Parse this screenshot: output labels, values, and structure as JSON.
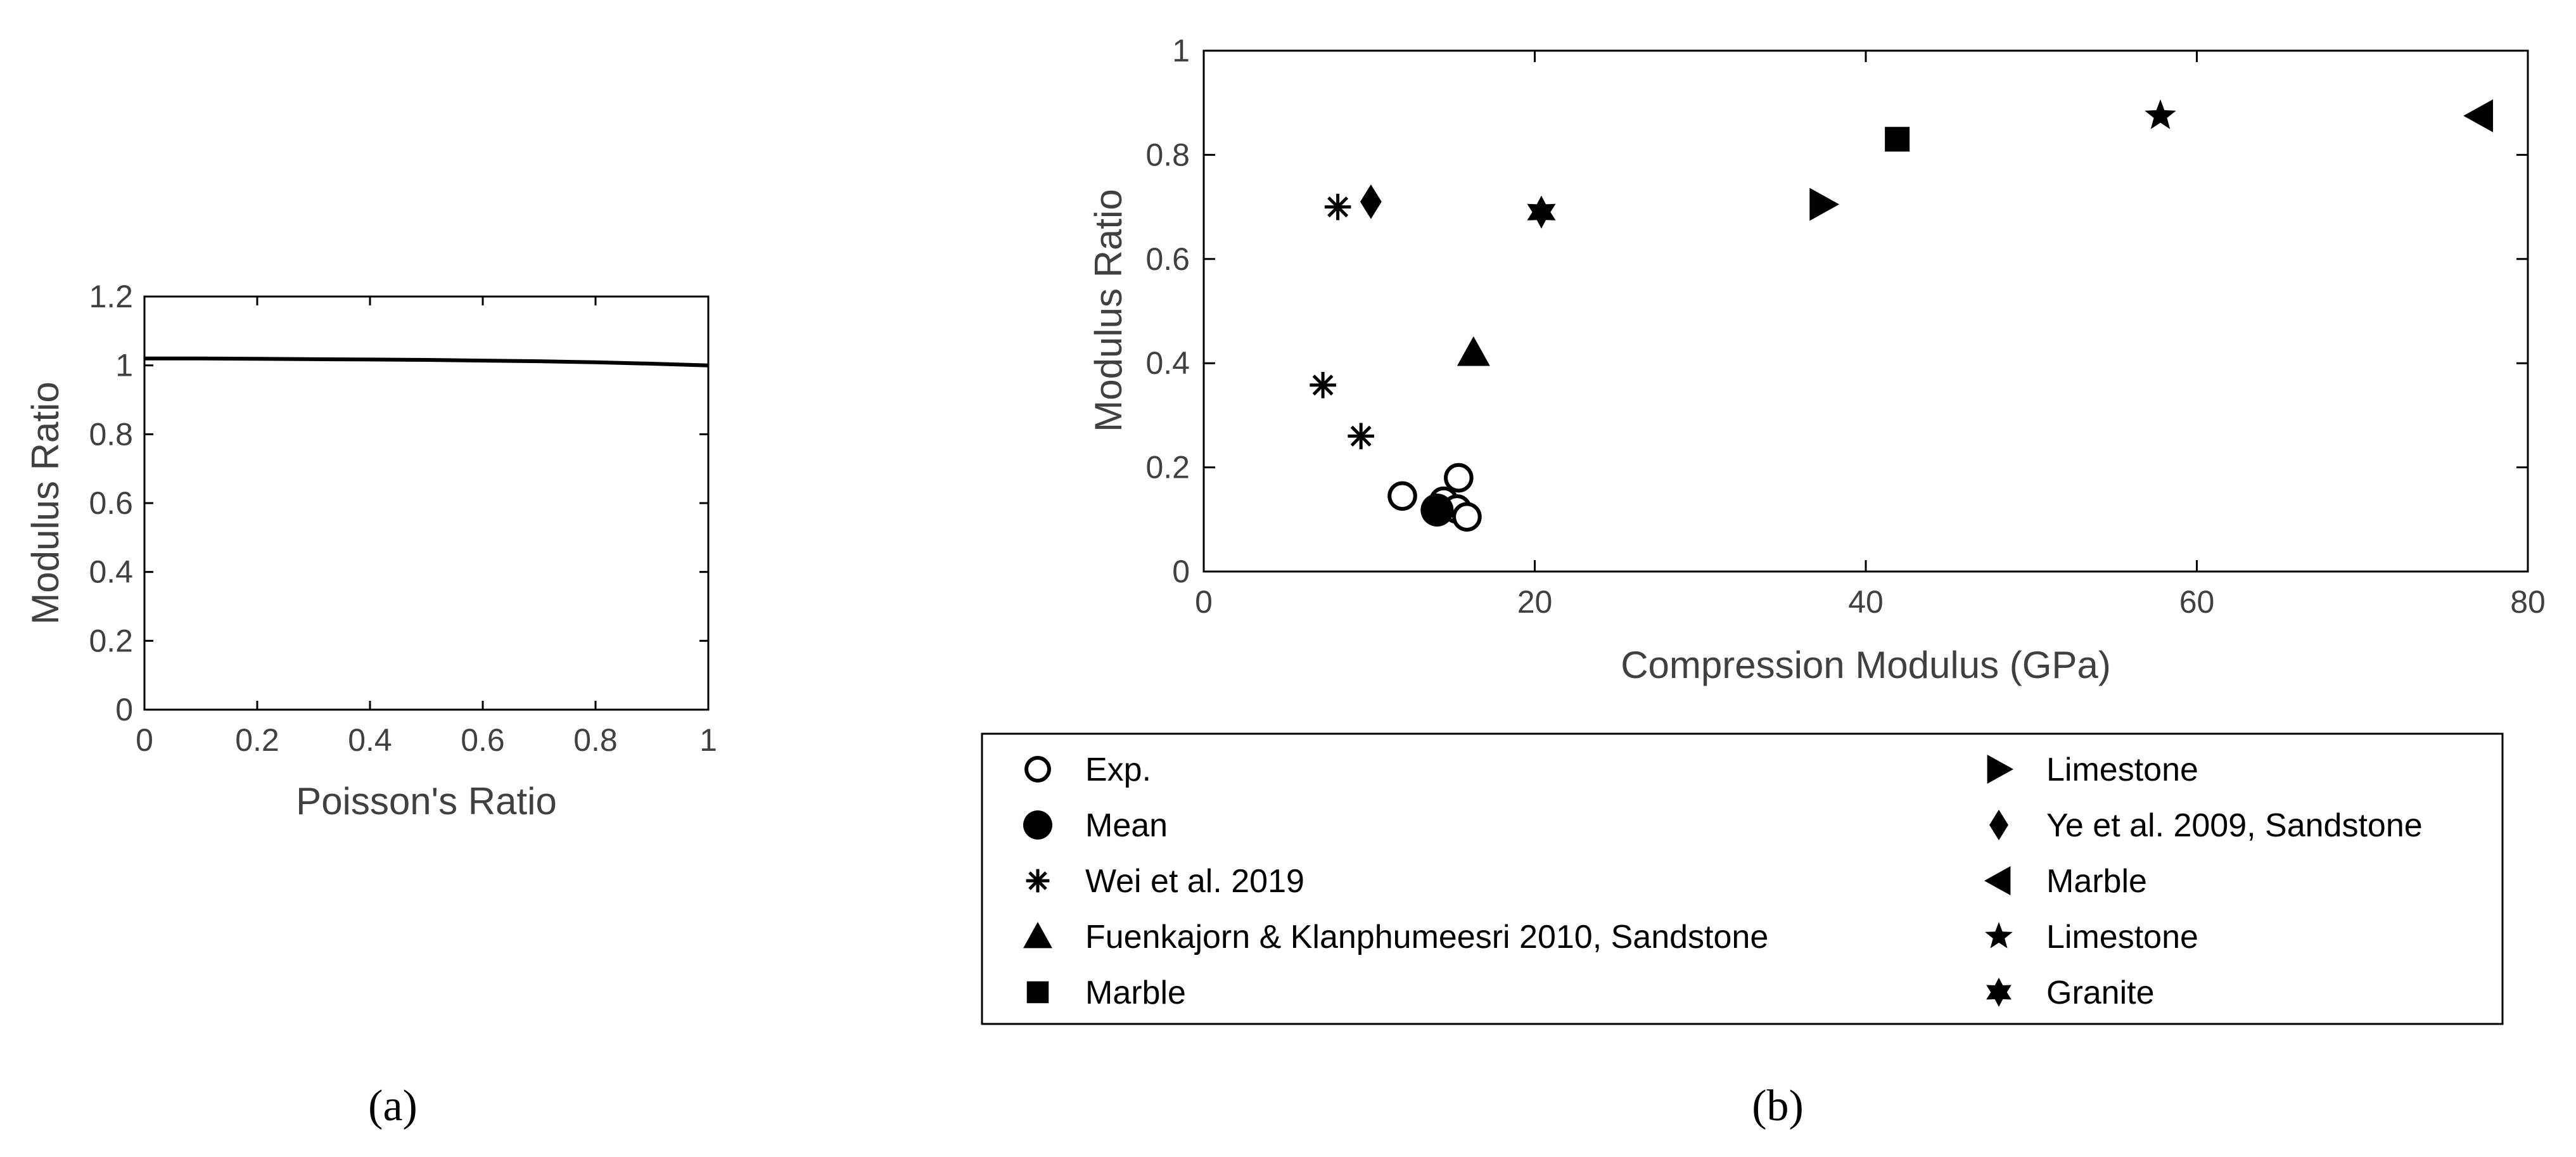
{
  "chart_data": [
    {
      "type": "line",
      "panel_label": "(a)",
      "xlabel": "Poisson's Ratio",
      "ylabel": "Modulus Ratio",
      "xlim": [
        0,
        1
      ],
      "ylim": [
        0,
        1.2
      ],
      "xticks": [
        0,
        0.2,
        0.4,
        0.6,
        0.8,
        1
      ],
      "xtick_labels": [
        "0",
        "0.2",
        "0.4",
        "0.6",
        "0.8",
        "1"
      ],
      "yticks": [
        0,
        0.2,
        0.4,
        0.6,
        0.8,
        1,
        1.2
      ],
      "ytick_labels": [
        "0",
        "0.2",
        "0.4",
        "0.6",
        "0.8",
        "1",
        "1.2"
      ],
      "series": [
        {
          "name": "Modulus Ratio",
          "x": [
            0,
            0.1,
            0.2,
            0.3,
            0.4,
            0.5,
            0.6,
            0.7,
            0.8,
            0.9,
            1.0
          ],
          "y": [
            1.02,
            1.02,
            1.019,
            1.018,
            1.017,
            1.016,
            1.014,
            1.012,
            1.009,
            1.005,
            1.0
          ]
        }
      ]
    },
    {
      "type": "scatter",
      "panel_label": "(b)",
      "xlabel": "Compression Modulus (GPa)",
      "ylabel": "Modulus Ratio",
      "xlim": [
        0,
        80
      ],
      "ylim": [
        0,
        1
      ],
      "xticks": [
        0,
        20,
        40,
        60,
        80
      ],
      "xtick_labels": [
        "0",
        "20",
        "40",
        "60",
        "80"
      ],
      "yticks": [
        0,
        0.2,
        0.4,
        0.6,
        0.8,
        1
      ],
      "ytick_labels": [
        "0",
        "0.2",
        "0.4",
        "0.6",
        "0.8",
        "1"
      ],
      "legend_position": "bottom",
      "series": [
        {
          "name": "Exp.",
          "marker": "circle-open",
          "points": [
            [
              12.0,
              0.145
            ],
            [
              14.5,
              0.135
            ],
            [
              15.3,
              0.12
            ],
            [
              15.4,
              0.18
            ],
            [
              15.9,
              0.105
            ]
          ]
        },
        {
          "name": "Mean",
          "marker": "circle-filled",
          "points": [
            [
              14.1,
              0.118
            ]
          ]
        },
        {
          "name": "Wei et al. 2019",
          "marker": "asterisk",
          "points": [
            [
              8.1,
              0.7
            ],
            [
              7.2,
              0.358
            ],
            [
              9.5,
              0.26
            ]
          ]
        },
        {
          "name": "Fuenkajorn & Klanphumeesri 2010, Sandstone",
          "marker": "triangle-up",
          "points": [
            [
              16.3,
              0.42
            ]
          ]
        },
        {
          "name": "Marble",
          "marker": "square",
          "points": [
            [
              41.9,
              0.83
            ]
          ]
        },
        {
          "name": "Limestone",
          "marker": "triangle-right",
          "points": [
            [
              37.4,
              0.705
            ]
          ]
        },
        {
          "name": "Ye et al. 2009, Sandstone",
          "marker": "diamond",
          "points": [
            [
              10.1,
              0.71
            ]
          ]
        },
        {
          "name": "Marble",
          "marker": "triangle-left",
          "points": [
            [
              77.1,
              0.875
            ]
          ]
        },
        {
          "name": "Limestone",
          "marker": "star5",
          "points": [
            [
              57.8,
              0.875
            ]
          ]
        },
        {
          "name": "Granite",
          "marker": "star6",
          "points": [
            [
              20.4,
              0.69
            ]
          ]
        }
      ]
    }
  ]
}
